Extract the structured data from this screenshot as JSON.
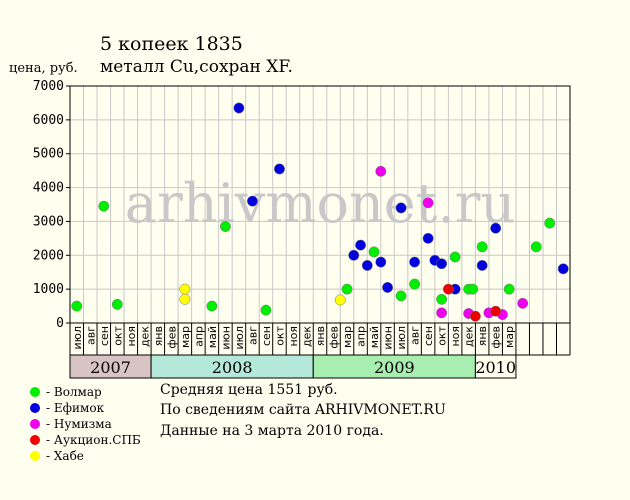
{
  "header": {
    "title": "5 копеек 1835",
    "subtitle": "металл Cu,сохран XF.",
    "ylabel": "цена, руб."
  },
  "watermark": "arhivmonet.ru",
  "info": {
    "avg": "Средняя цена 1551 руб.",
    "source": "По  сведениям сайта ARHIVMONET.RU",
    "date": "Данные на 3 марта 2010 года."
  },
  "legend": [
    {
      "label": "- Волмар",
      "color": "#00ee00"
    },
    {
      "label": "- Ефимок",
      "color": "#0000dd"
    },
    {
      "label": "- Нумизма",
      "color": "#ee00ee"
    },
    {
      "label": "- Аукцион.СПБ",
      "color": "#ee0000"
    },
    {
      "label": "- Хабе",
      "color": "#ffff00"
    }
  ],
  "chart_data": {
    "type": "scatter",
    "ylim": [
      0,
      7000
    ],
    "yticks": [
      "0",
      "1000",
      "2000",
      "3000",
      "4000",
      "5000",
      "6000",
      "7000"
    ],
    "months": [
      "июл",
      "авг",
      "сен",
      "окт",
      "ноя",
      "дек",
      "янв",
      "фев",
      "мар",
      "апр",
      "май",
      "июн",
      "июл",
      "авг",
      "сен",
      "окт",
      "ноя",
      "дек",
      "янв",
      "фев",
      "мар",
      "апр",
      "май",
      "июн",
      "июл",
      "авг",
      "сен",
      "окт",
      "ноя",
      "дек",
      "янв",
      "фев",
      "мар"
    ],
    "years": [
      {
        "label": "2007",
        "start": 0,
        "count": 6,
        "color": "#d8c4c4"
      },
      {
        "label": "2008",
        "start": 6,
        "count": 12,
        "color": "#b4e8d8"
      },
      {
        "label": "2009",
        "start": 18,
        "count": 12,
        "color": "#a8eeb0"
      },
      {
        "label": "2010",
        "start": 30,
        "count": 3,
        "color": "#fffff0"
      }
    ],
    "grid": true,
    "series": [
      {
        "name": "Волмар",
        "color": "#00ee00",
        "points": [
          [
            0.5,
            500
          ],
          [
            2.5,
            3450
          ],
          [
            3.5,
            550
          ],
          [
            10.5,
            500
          ],
          [
            11.5,
            2850
          ],
          [
            14.5,
            380
          ],
          [
            20.5,
            1000
          ],
          [
            22.5,
            2100
          ],
          [
            24.5,
            800
          ],
          [
            25.5,
            1150
          ],
          [
            27.5,
            700
          ],
          [
            28.5,
            1950
          ],
          [
            29.5,
            1000
          ],
          [
            29.8,
            1000
          ],
          [
            30.5,
            2250
          ],
          [
            32.5,
            1000
          ],
          [
            34.5,
            2250
          ],
          [
            35.5,
            2950
          ]
        ]
      },
      {
        "name": "Ефимок",
        "color": "#0000dd",
        "points": [
          [
            12.5,
            6350
          ],
          [
            13.5,
            3600
          ],
          [
            15.5,
            4550
          ],
          [
            21,
            2000
          ],
          [
            21.5,
            2300
          ],
          [
            22,
            1700
          ],
          [
            23,
            1800
          ],
          [
            23.5,
            1050
          ],
          [
            24.5,
            3400
          ],
          [
            25.5,
            1800
          ],
          [
            26.5,
            2500
          ],
          [
            27,
            1850
          ],
          [
            27.5,
            1750
          ],
          [
            28.5,
            1000
          ],
          [
            30.5,
            1700
          ],
          [
            31.5,
            2800
          ],
          [
            36.5,
            1600
          ]
        ]
      },
      {
        "name": "Нумизма",
        "color": "#ee00ee",
        "points": [
          [
            23,
            4480
          ],
          [
            26.5,
            3550
          ],
          [
            27.5,
            300
          ],
          [
            29.5,
            280
          ],
          [
            31,
            300
          ],
          [
            32,
            250
          ],
          [
            33.5,
            580
          ]
        ]
      },
      {
        "name": "Аукцион.СПБ",
        "color": "#ee0000",
        "points": [
          [
            28,
            1000
          ],
          [
            30,
            200
          ],
          [
            31.5,
            350
          ]
        ]
      },
      {
        "name": "Хабе",
        "color": "#ffff00",
        "points": [
          [
            8.5,
            1000
          ],
          [
            8.5,
            700
          ],
          [
            20,
            680
          ]
        ]
      }
    ]
  }
}
